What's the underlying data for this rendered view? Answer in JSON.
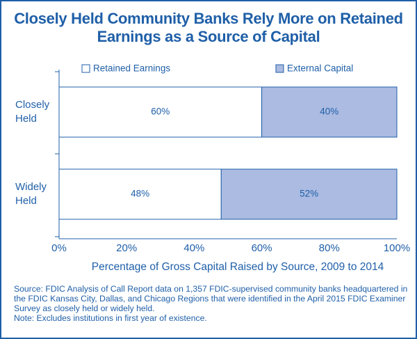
{
  "chart_data": {
    "type": "bar",
    "orientation": "horizontal",
    "stacked": true,
    "title": "Closely Held Community Banks Rely More on Retained Earnings as a Source of Capital",
    "xlabel": "Percentage of Gross Capital Raised by Source, 2009 to 2014",
    "categories": [
      "Closely Held",
      "Widely Held"
    ],
    "series": [
      {
        "name": "Retained Earnings",
        "color": "#ffffff",
        "values": [
          60,
          48
        ],
        "value_labels": [
          "60%",
          "48%"
        ]
      },
      {
        "name": "External Capital",
        "color": "#abbbe1",
        "values": [
          40,
          52
        ],
        "value_labels": [
          "40%",
          "52%"
        ]
      }
    ],
    "xlim": [
      0,
      100
    ],
    "xticks": [
      {
        "value": 0,
        "label": "0%"
      },
      {
        "value": 20,
        "label": "20%"
      },
      {
        "value": 40,
        "label": "40%"
      },
      {
        "value": 60,
        "label": "60%"
      },
      {
        "value": 80,
        "label": "80%"
      },
      {
        "value": 100,
        "label": "100%"
      }
    ],
    "legend": "top",
    "source": "Source: FDIC Analysis of Call Report data on 1,357 FDIC-supervised community banks headquartered in the FDIC Kansas City, Dallas, and Chicago Regions that were identified in the April 2015 FDIC Examiner Survey as closely held or widely held.",
    "note": "Note: Excludes institutions in first year of existence."
  }
}
